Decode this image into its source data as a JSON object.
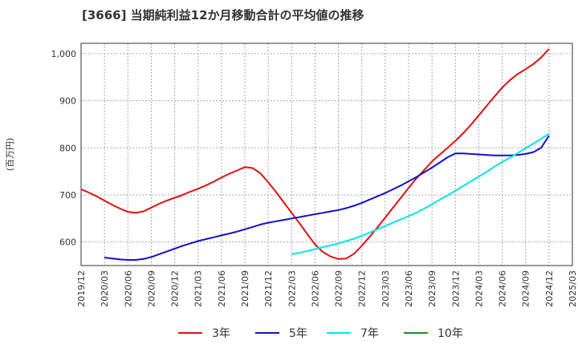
{
  "title": "[3666]  当期純利益12か月移動合計の平均値の推移",
  "chart_data": {
    "type": "line",
    "title": "[3666]  当期純利益12か月移動合計の平均値の推移",
    "ylabel": "(百万円)",
    "xlabel": "",
    "x_ticks": [
      "2019/12",
      "2020/03",
      "2020/06",
      "2020/09",
      "2020/12",
      "2021/03",
      "2021/06",
      "2021/09",
      "2021/12",
      "2022/03",
      "2022/06",
      "2022/09",
      "2022/12",
      "2023/03",
      "2023/06",
      "2023/09",
      "2023/12",
      "2024/03",
      "2024/06",
      "2024/09",
      "2024/12",
      "2025/03"
    ],
    "y_ticks": [
      600,
      700,
      800,
      900,
      1000
    ],
    "y_tick_labels": [
      "600",
      "700",
      "800",
      "900",
      "1,000"
    ],
    "ylim": [
      550,
      1022
    ],
    "grid": true,
    "legend_position": "bottom",
    "series": [
      {
        "name": "3年",
        "color": "#dd1111",
        "points": [
          [
            "2019/12",
            712
          ],
          [
            "2020/01",
            705
          ],
          [
            "2020/02",
            697
          ],
          [
            "2020/03",
            688
          ],
          [
            "2020/04",
            679
          ],
          [
            "2020/05",
            671
          ],
          [
            "2020/06",
            664
          ],
          [
            "2020/07",
            662
          ],
          [
            "2020/08",
            665
          ],
          [
            "2020/09",
            673
          ],
          [
            "2020/10",
            681
          ],
          [
            "2020/11",
            688
          ],
          [
            "2020/12",
            694
          ],
          [
            "2021/01",
            700
          ],
          [
            "2021/02",
            707
          ],
          [
            "2021/03",
            713
          ],
          [
            "2021/04",
            720
          ],
          [
            "2021/05",
            728
          ],
          [
            "2021/06",
            737
          ],
          [
            "2021/07",
            745
          ],
          [
            "2021/08",
            752
          ],
          [
            "2021/09",
            759
          ],
          [
            "2021/10",
            757
          ],
          [
            "2021/11",
            746
          ],
          [
            "2021/12",
            727
          ],
          [
            "2022/01",
            706
          ],
          [
            "2022/02",
            684
          ],
          [
            "2022/03",
            662
          ],
          [
            "2022/04",
            640
          ],
          [
            "2022/05",
            617
          ],
          [
            "2022/06",
            595
          ],
          [
            "2022/07",
            579
          ],
          [
            "2022/08",
            569
          ],
          [
            "2022/09",
            564
          ],
          [
            "2022/10",
            565
          ],
          [
            "2022/11",
            575
          ],
          [
            "2022/12",
            592
          ],
          [
            "2023/01",
            611
          ],
          [
            "2023/02",
            631
          ],
          [
            "2023/03",
            652
          ],
          [
            "2023/04",
            673
          ],
          [
            "2023/05",
            694
          ],
          [
            "2023/06",
            715
          ],
          [
            "2023/07",
            735
          ],
          [
            "2023/08",
            753
          ],
          [
            "2023/09",
            771
          ],
          [
            "2023/10",
            786
          ],
          [
            "2023/11",
            800
          ],
          [
            "2023/12",
            815
          ],
          [
            "2024/01",
            831
          ],
          [
            "2024/02",
            849
          ],
          [
            "2024/03",
            869
          ],
          [
            "2024/04",
            889
          ],
          [
            "2024/05",
            909
          ],
          [
            "2024/06",
            928
          ],
          [
            "2024/07",
            944
          ],
          [
            "2024/08",
            957
          ],
          [
            "2024/09",
            967
          ],
          [
            "2024/10",
            978
          ],
          [
            "2024/11",
            992
          ],
          [
            "2024/12",
            1010
          ]
        ]
      },
      {
        "name": "5年",
        "color": "#1111cc",
        "points": [
          [
            "2020/03",
            567
          ],
          [
            "2020/04",
            565
          ],
          [
            "2020/05",
            563
          ],
          [
            "2020/06",
            562
          ],
          [
            "2020/07",
            562
          ],
          [
            "2020/08",
            564
          ],
          [
            "2020/09",
            568
          ],
          [
            "2020/10",
            574
          ],
          [
            "2020/11",
            580
          ],
          [
            "2020/12",
            586
          ],
          [
            "2021/01",
            592
          ],
          [
            "2021/02",
            597
          ],
          [
            "2021/03",
            602
          ],
          [
            "2021/04",
            606
          ],
          [
            "2021/05",
            610
          ],
          [
            "2021/06",
            614
          ],
          [
            "2021/07",
            618
          ],
          [
            "2021/08",
            622
          ],
          [
            "2021/09",
            627
          ],
          [
            "2021/10",
            632
          ],
          [
            "2021/11",
            637
          ],
          [
            "2021/12",
            641
          ],
          [
            "2022/01",
            644
          ],
          [
            "2022/02",
            647
          ],
          [
            "2022/03",
            650
          ],
          [
            "2022/04",
            653
          ],
          [
            "2022/05",
            656
          ],
          [
            "2022/06",
            659
          ],
          [
            "2022/07",
            662
          ],
          [
            "2022/08",
            665
          ],
          [
            "2022/09",
            668
          ],
          [
            "2022/10",
            672
          ],
          [
            "2022/11",
            677
          ],
          [
            "2022/12",
            683
          ],
          [
            "2023/01",
            690
          ],
          [
            "2023/02",
            697
          ],
          [
            "2023/03",
            704
          ],
          [
            "2023/04",
            712
          ],
          [
            "2023/05",
            720
          ],
          [
            "2023/06",
            729
          ],
          [
            "2023/07",
            738
          ],
          [
            "2023/08",
            748
          ],
          [
            "2023/09",
            758
          ],
          [
            "2023/10",
            769
          ],
          [
            "2023/11",
            780
          ],
          [
            "2023/12",
            788
          ],
          [
            "2024/01",
            788
          ],
          [
            "2024/02",
            787
          ],
          [
            "2024/03",
            786
          ],
          [
            "2024/04",
            785
          ],
          [
            "2024/05",
            784
          ],
          [
            "2024/06",
            784
          ],
          [
            "2024/07",
            784
          ],
          [
            "2024/08",
            785
          ],
          [
            "2024/09",
            787
          ],
          [
            "2024/10",
            791
          ],
          [
            "2024/11",
            800
          ],
          [
            "2024/12",
            826
          ]
        ]
      },
      {
        "name": "7年",
        "color": "#00e5ee",
        "points": [
          [
            "2022/03",
            574
          ],
          [
            "2022/04",
            577
          ],
          [
            "2022/05",
            581
          ],
          [
            "2022/06",
            585
          ],
          [
            "2022/07",
            589
          ],
          [
            "2022/08",
            593
          ],
          [
            "2022/09",
            597
          ],
          [
            "2022/10",
            602
          ],
          [
            "2022/11",
            607
          ],
          [
            "2022/12",
            613
          ],
          [
            "2023/01",
            620
          ],
          [
            "2023/02",
            627
          ],
          [
            "2023/03",
            634
          ],
          [
            "2023/04",
            641
          ],
          [
            "2023/05",
            648
          ],
          [
            "2023/06",
            655
          ],
          [
            "2023/07",
            662
          ],
          [
            "2023/08",
            671
          ],
          [
            "2023/09",
            680
          ],
          [
            "2023/10",
            690
          ],
          [
            "2023/11",
            699
          ],
          [
            "2023/12",
            709
          ],
          [
            "2024/01",
            719
          ],
          [
            "2024/02",
            729
          ],
          [
            "2024/03",
            739
          ],
          [
            "2024/04",
            749
          ],
          [
            "2024/05",
            760
          ],
          [
            "2024/06",
            770
          ],
          [
            "2024/07",
            779
          ],
          [
            "2024/08",
            789
          ],
          [
            "2024/09",
            799
          ],
          [
            "2024/10",
            809
          ],
          [
            "2024/11",
            819
          ],
          [
            "2024/12",
            830
          ]
        ]
      },
      {
        "name": "10年",
        "color": "#228b22",
        "points": []
      }
    ]
  }
}
